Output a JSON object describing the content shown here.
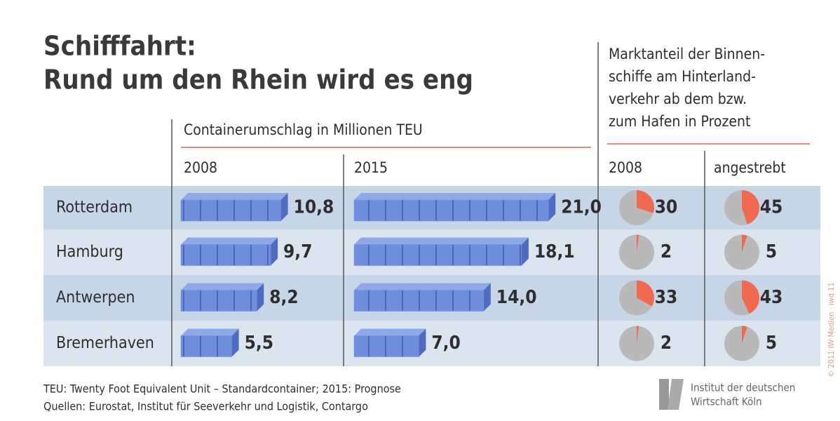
{
  "title": [
    "Schifffahrt:",
    "Rund um den Rhein wird es eng"
  ],
  "footnotes": [
    "TEU: Twenty Foot Equivalent Unit – Standardcontainer; 2015: Prognose",
    "Quellen: Eurostat, Institut für Seeverkehr und Logistik, Contargo"
  ],
  "logo": [
    "Institut der deutschen",
    "Wirtschaft Köln"
  ],
  "copyright": "© 2011 IW Medien · iwd 11",
  "chart_data": [
    {
      "type": "bar",
      "orientation": "horizontal",
      "title": "Containerumschlag in Millionen TEU",
      "categories": [
        "Rotterdam",
        "Hamburg",
        "Antwerpen",
        "Bremerhaven"
      ],
      "series": [
        {
          "name": "2008",
          "color": "#6f8fdc",
          "values": [
            10.8,
            9.7,
            8.2,
            5.5
          ],
          "value_labels": [
            "10,8",
            "9,7",
            "8,2",
            "5,5"
          ]
        },
        {
          "name": "2015",
          "color": "#6f8fdc",
          "values": [
            21.0,
            18.1,
            14.0,
            7.0
          ],
          "value_labels": [
            "21,0",
            "18,1",
            "14,0",
            "7,0"
          ]
        }
      ]
    },
    {
      "type": "pie",
      "title": [
        "Marktanteil der Binnen-",
        "schiffe am Hinterland-",
        "verkehr ab dem bzw.",
        "zum Hafen in Prozent"
      ],
      "color": "#ef6a4f",
      "rest_color": "#b9b9b9",
      "series": [
        {
          "name": "2008",
          "values": [
            30,
            2,
            33,
            2
          ]
        },
        {
          "name": "angestrebt",
          "values": [
            45,
            5,
            43,
            5
          ]
        }
      ]
    }
  ]
}
